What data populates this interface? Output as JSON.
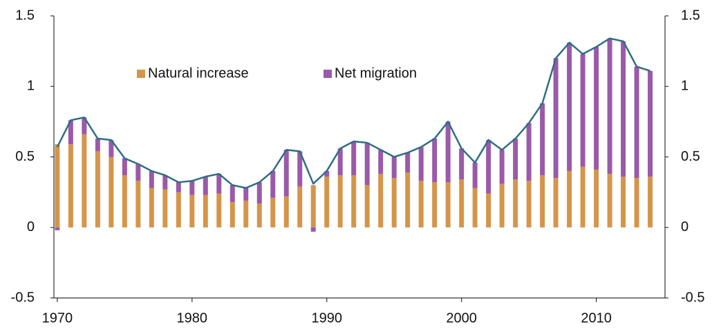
{
  "chart_data": {
    "type": "stacked-bar-line",
    "x": [
      1970,
      1971,
      1972,
      1973,
      1974,
      1975,
      1976,
      1977,
      1978,
      1979,
      1980,
      1981,
      1982,
      1983,
      1984,
      1985,
      1986,
      1987,
      1988,
      1989,
      1990,
      1991,
      1992,
      1993,
      1994,
      1995,
      1996,
      1997,
      1998,
      1999,
      2000,
      2001,
      2002,
      2003,
      2004,
      2005,
      2006,
      2007,
      2008,
      2009,
      2010,
      2011,
      2012,
      2013,
      2014
    ],
    "series": [
      {
        "name": "Natural increase",
        "color": "#d4954a",
        "values": [
          0.59,
          0.59,
          0.66,
          0.54,
          0.5,
          0.37,
          0.33,
          0.28,
          0.27,
          0.25,
          0.23,
          0.23,
          0.24,
          0.18,
          0.19,
          0.17,
          0.21,
          0.22,
          0.29,
          0.3,
          0.36,
          0.37,
          0.37,
          0.3,
          0.38,
          0.35,
          0.39,
          0.33,
          0.32,
          0.32,
          0.34,
          0.28,
          0.24,
          0.31,
          0.34,
          0.33,
          0.37,
          0.35,
          0.4,
          0.43,
          0.41,
          0.38,
          0.36,
          0.35,
          0.36
        ]
      },
      {
        "name": "Net migration",
        "color": "#9a5aa8",
        "values": [
          -0.02,
          0.17,
          0.12,
          0.09,
          0.12,
          0.12,
          0.12,
          0.12,
          0.1,
          0.07,
          0.1,
          0.13,
          0.14,
          0.12,
          0.09,
          0.15,
          0.19,
          0.33,
          0.25,
          -0.03,
          0.04,
          0.19,
          0.24,
          0.3,
          0.17,
          0.15,
          0.14,
          0.24,
          0.31,
          0.43,
          0.22,
          0.18,
          0.38,
          0.24,
          0.29,
          0.41,
          0.51,
          0.85,
          0.91,
          0.8,
          0.87,
          0.96,
          0.96,
          0.79,
          0.75
        ]
      }
    ],
    "line": {
      "color": "#2e6d84",
      "values": [
        0.57,
        0.76,
        0.78,
        0.63,
        0.62,
        0.49,
        0.45,
        0.4,
        0.37,
        0.32,
        0.33,
        0.36,
        0.38,
        0.3,
        0.28,
        0.32,
        0.4,
        0.55,
        0.54,
        0.31,
        0.4,
        0.56,
        0.61,
        0.6,
        0.55,
        0.5,
        0.53,
        0.57,
        0.63,
        0.75,
        0.56,
        0.46,
        0.62,
        0.55,
        0.63,
        0.74,
        0.88,
        1.2,
        1.31,
        1.23,
        1.28,
        1.34,
        1.32,
        1.14,
        1.11
      ]
    },
    "xlim": [
      1969.75,
      2015.1
    ],
    "xticks": [
      1970,
      1980,
      1990,
      2000,
      2010
    ],
    "ylim": [
      -0.5,
      1.5
    ],
    "yticks": [
      -0.5,
      0,
      0.5,
      1,
      1.5
    ],
    "y2lim": [
      -0.5,
      1.5
    ],
    "y2ticks": [
      -0.5,
      0,
      0.5,
      1,
      1.5
    ],
    "legend": "top-left"
  }
}
